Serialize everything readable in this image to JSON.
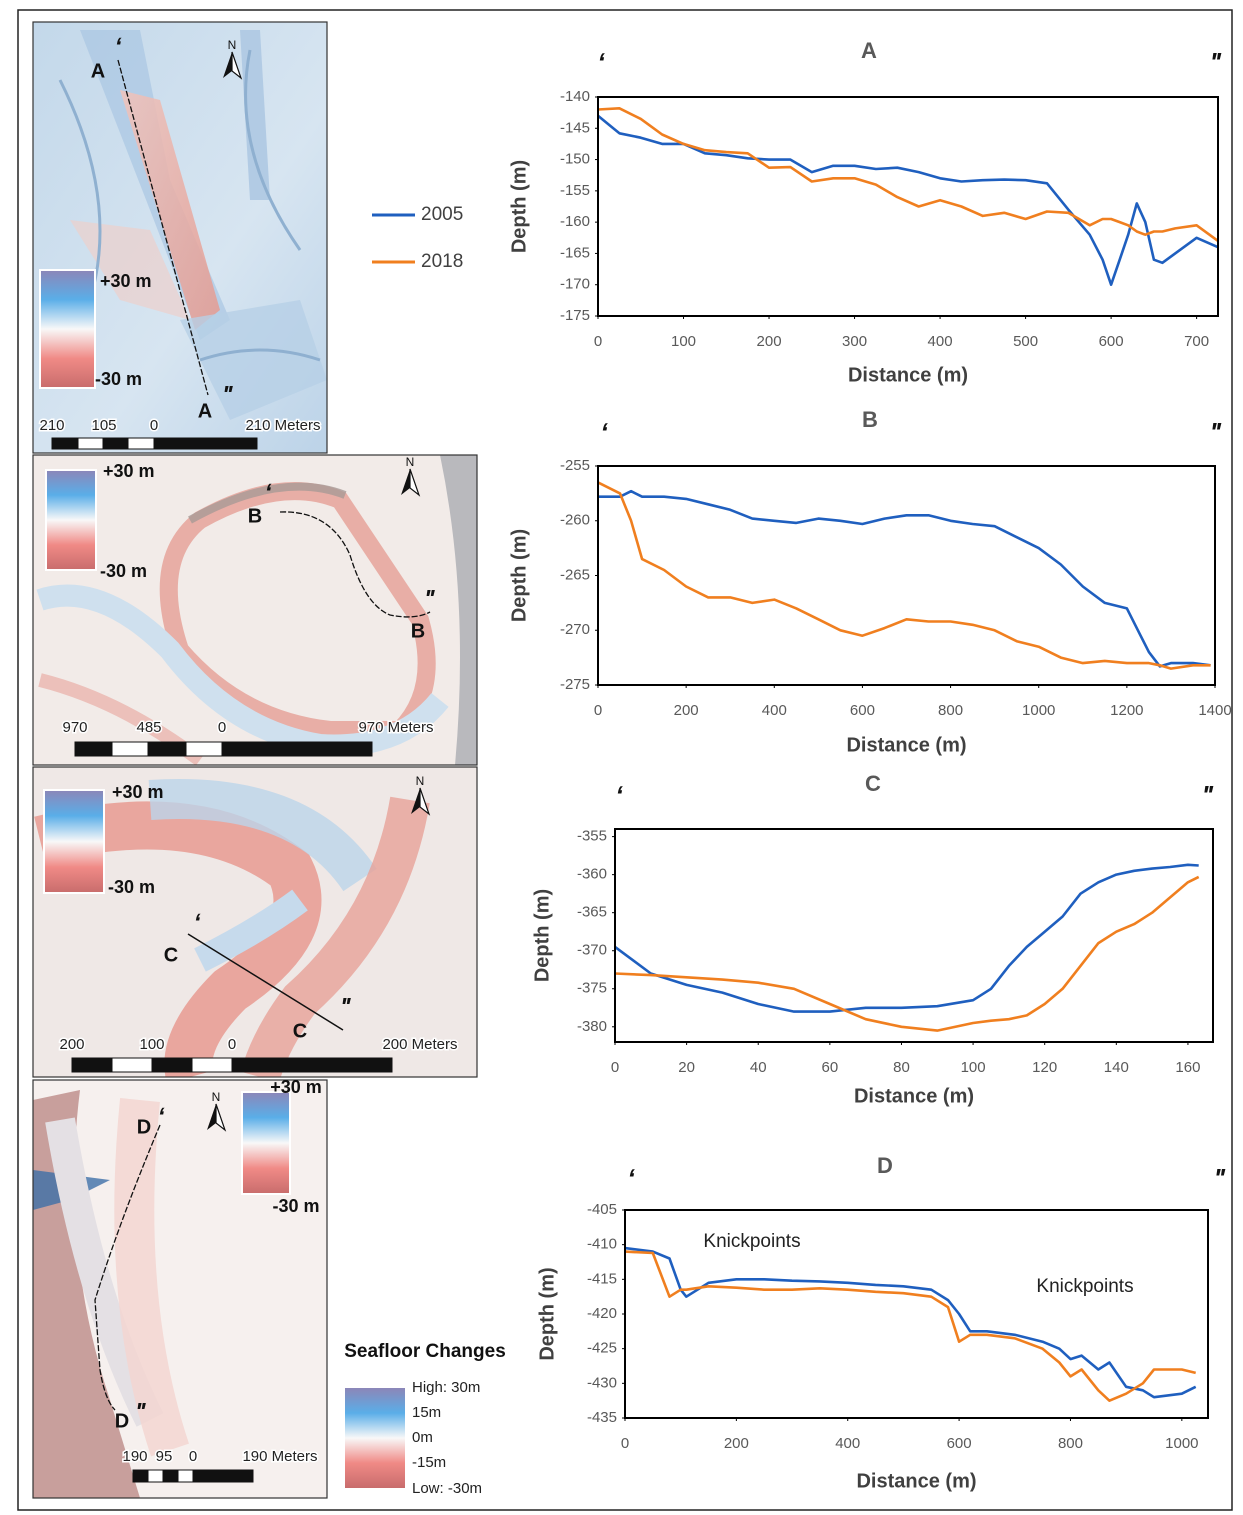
{
  "chart_data": [
    {
      "type": "line",
      "title": "A",
      "start_mark": "ʻ",
      "end_mark": "ʺ",
      "x_label": "Distance (m)",
      "y_label": "Depth (m)",
      "x": [
        0,
        25,
        50,
        75,
        100,
        125,
        150,
        175,
        200,
        225,
        250,
        275,
        300,
        325,
        350,
        375,
        400,
        425,
        450,
        475,
        500,
        525,
        550,
        575,
        590,
        600,
        610,
        620,
        630,
        640,
        650,
        660,
        675,
        700,
        725
      ],
      "series": [
        {
          "name": "2005",
          "color": "#1f5fbf",
          "values": [
            -143,
            -145.8,
            -146.5,
            -147.5,
            -147.5,
            -149,
            -149.3,
            -149.8,
            -150,
            -150,
            -152,
            -151,
            -151,
            -151.5,
            -151.3,
            -152,
            -153,
            -153.5,
            -153.3,
            -153.2,
            -153.3,
            -153.8,
            -158,
            -162,
            -166,
            -170,
            -166,
            -162,
            -157,
            -160,
            -166,
            -166.5,
            -165,
            -162.5,
            -164
          ]
        },
        {
          "name": "2018",
          "color": "#f07f1f",
          "values": [
            -142,
            -141.8,
            -143.5,
            -146,
            -147.5,
            -148.5,
            -148.8,
            -149,
            -151.3,
            -151.2,
            -153.5,
            -153,
            -153,
            -154,
            -156,
            -157.5,
            -156.5,
            -157.5,
            -159,
            -158.5,
            -159.5,
            -158.3,
            -158.5,
            -160.5,
            -159.5,
            -159.5,
            -160,
            -160.5,
            -161.5,
            -162,
            -161.5,
            -161.5,
            -161,
            -160.5,
            -163
          ]
        }
      ],
      "xlim": [
        0,
        725
      ],
      "xticks": [
        0,
        100,
        200,
        300,
        400,
        500,
        600,
        700
      ],
      "ylim": [
        -175,
        -140
      ],
      "yticks": [
        -175,
        -170,
        -165,
        -160,
        -155,
        -150,
        -145,
        -140
      ]
    },
    {
      "type": "line",
      "title": "B",
      "start_mark": "ʻ",
      "end_mark": "ʺ",
      "x_label": "Distance (m)",
      "y_label": "Depth (m)",
      "x": [
        0,
        50,
        75,
        100,
        150,
        200,
        250,
        300,
        350,
        400,
        450,
        500,
        550,
        600,
        650,
        700,
        750,
        800,
        850,
        900,
        950,
        1000,
        1050,
        1100,
        1150,
        1200,
        1225,
        1250,
        1275,
        1300,
        1350,
        1390
      ],
      "series": [
        {
          "name": "2005",
          "color": "#1f5fbf",
          "values": [
            -257.8,
            -257.8,
            -257.3,
            -257.8,
            -257.8,
            -258,
            -258.5,
            -259,
            -259.8,
            -260,
            -260.2,
            -259.8,
            -260,
            -260.3,
            -259.8,
            -259.5,
            -259.5,
            -260,
            -260.3,
            -260.5,
            -261.5,
            -262.5,
            -264,
            -266,
            -267.5,
            -268,
            -270,
            -272,
            -273.3,
            -273,
            -273,
            -273.2
          ]
        },
        {
          "name": "2018",
          "color": "#f07f1f",
          "values": [
            -256.5,
            -257.5,
            -260,
            -263.5,
            -264.5,
            -266,
            -267,
            -267,
            -267.5,
            -267.2,
            -268,
            -269,
            -270,
            -270.5,
            -269.8,
            -269,
            -269.2,
            -269.2,
            -269.5,
            -270,
            -271,
            -271.5,
            -272.5,
            -273,
            -272.8,
            -273,
            -273,
            -273,
            -273.2,
            -273.5,
            -273.2,
            -273.2
          ]
        }
      ],
      "xlim": [
        0,
        1400
      ],
      "xticks": [
        0,
        200,
        400,
        600,
        800,
        1000,
        1200,
        1400
      ],
      "ylim": [
        -275,
        -255
      ],
      "yticks": [
        -275,
        -270,
        -265,
        -260,
        -255
      ]
    },
    {
      "type": "line",
      "title": "C",
      "start_mark": "ʻ",
      "end_mark": "ʺ",
      "x_label": "Distance (m)",
      "y_label": "Depth (m)",
      "x": [
        0,
        10,
        20,
        30,
        40,
        50,
        60,
        70,
        80,
        90,
        100,
        105,
        110,
        115,
        120,
        125,
        130,
        135,
        140,
        145,
        150,
        155,
        160,
        163
      ],
      "series": [
        {
          "name": "2005",
          "color": "#1f5fbf",
          "values": [
            -369.5,
            -373,
            -374.5,
            -375.5,
            -377,
            -378,
            -378,
            -377.5,
            -377.5,
            -377.3,
            -376.5,
            -375,
            -372,
            -369.5,
            -367.5,
            -365.5,
            -362.5,
            -361,
            -360,
            -359.5,
            -359.2,
            -359,
            -358.7,
            -358.8
          ]
        },
        {
          "name": "2018",
          "color": "#f07f1f",
          "values": [
            -373,
            -373.2,
            -373.5,
            -373.8,
            -374.2,
            -375,
            -377,
            -379,
            -380,
            -380.5,
            -379.5,
            -379.2,
            -379,
            -378.5,
            -377,
            -375,
            -372,
            -369,
            -367.5,
            -366.5,
            -365,
            -363,
            -361,
            -360.3
          ]
        }
      ],
      "xlim": [
        0,
        167
      ],
      "xticks": [
        0,
        20,
        40,
        60,
        80,
        100,
        120,
        140,
        160
      ],
      "ylim": [
        -382,
        -354
      ],
      "yticks": [
        -380,
        -375,
        -370,
        -365,
        -360,
        -355
      ]
    },
    {
      "type": "line",
      "title": "D",
      "start_mark": "ʻ",
      "end_mark": "ʺ",
      "x_label": "Distance (m)",
      "y_label": "Depth (m)",
      "annotations": [
        {
          "text": "Knickpoints"
        },
        {
          "text": "Knickpoints"
        }
      ],
      "x": [
        0,
        50,
        80,
        100,
        110,
        150,
        200,
        250,
        300,
        350,
        400,
        450,
        500,
        550,
        580,
        600,
        620,
        650,
        700,
        750,
        780,
        800,
        820,
        850,
        870,
        900,
        930,
        950,
        1000,
        1025
      ],
      "series": [
        {
          "name": "2005",
          "color": "#1f5fbf",
          "values": [
            -410.5,
            -411,
            -412,
            -416.5,
            -417.5,
            -415.5,
            -415,
            -415,
            -415.2,
            -415.3,
            -415.5,
            -415.8,
            -416,
            -416.5,
            -418,
            -420,
            -422.5,
            -422.5,
            -423,
            -424,
            -425,
            -426.5,
            -426,
            -428,
            -427,
            -430.5,
            -431,
            -432,
            -431.5,
            -430.5
          ]
        },
        {
          "name": "2018",
          "color": "#f07f1f",
          "values": [
            -411,
            -411.2,
            -417.5,
            -416.5,
            -416.5,
            -416,
            -416.2,
            -416.5,
            -416.5,
            -416.3,
            -416.5,
            -416.8,
            -417,
            -417.5,
            -419,
            -424,
            -423,
            -423,
            -423.5,
            -425,
            -427,
            -429,
            -428,
            -431,
            -432.5,
            -431.5,
            -430,
            -428,
            -428,
            -428.5
          ]
        }
      ],
      "xlim": [
        0,
        1047
      ],
      "xticks": [
        0,
        200,
        400,
        600,
        800,
        1000
      ],
      "ylim": [
        -435,
        -405
      ],
      "yticks": [
        -435,
        -430,
        -425,
        -420,
        -415,
        -410,
        -405
      ]
    }
  ],
  "maps": [
    {
      "start": "A",
      "start_mark": "ʻ",
      "end": "A",
      "end_mark": "ʺ",
      "north": "N",
      "scale_max": "+30 m",
      "scale_min": "-30 m",
      "scale_bar": [
        "210",
        "105",
        "0",
        "210 Meters"
      ]
    },
    {
      "start": "B",
      "start_mark": "ʻ",
      "end": "B",
      "end_mark": "ʺ",
      "north": "N",
      "scale_max": "+30 m",
      "scale_min": "-30 m",
      "scale_bar": [
        "970",
        "485",
        "0",
        "970 Meters"
      ]
    },
    {
      "start": "C",
      "start_mark": "ʻ",
      "end": "C",
      "end_mark": "ʺ",
      "north": "N",
      "scale_max": "+30 m",
      "scale_min": "-30 m",
      "scale_bar": [
        "200",
        "100",
        "0",
        "200 Meters"
      ]
    },
    {
      "start": "D",
      "start_mark": "ʻ",
      "end": "D",
      "end_mark": "ʺ",
      "north": "N",
      "scale_max": "+30 m",
      "scale_min": "-30 m",
      "scale_bar": [
        "190",
        "95",
        "0",
        "190 Meters"
      ]
    }
  ],
  "map_legend": {
    "title": "Seafloor Changes",
    "labels": [
      "High: 30m",
      "15m",
      "0m",
      "-15m",
      "Low: -30m"
    ]
  }
}
